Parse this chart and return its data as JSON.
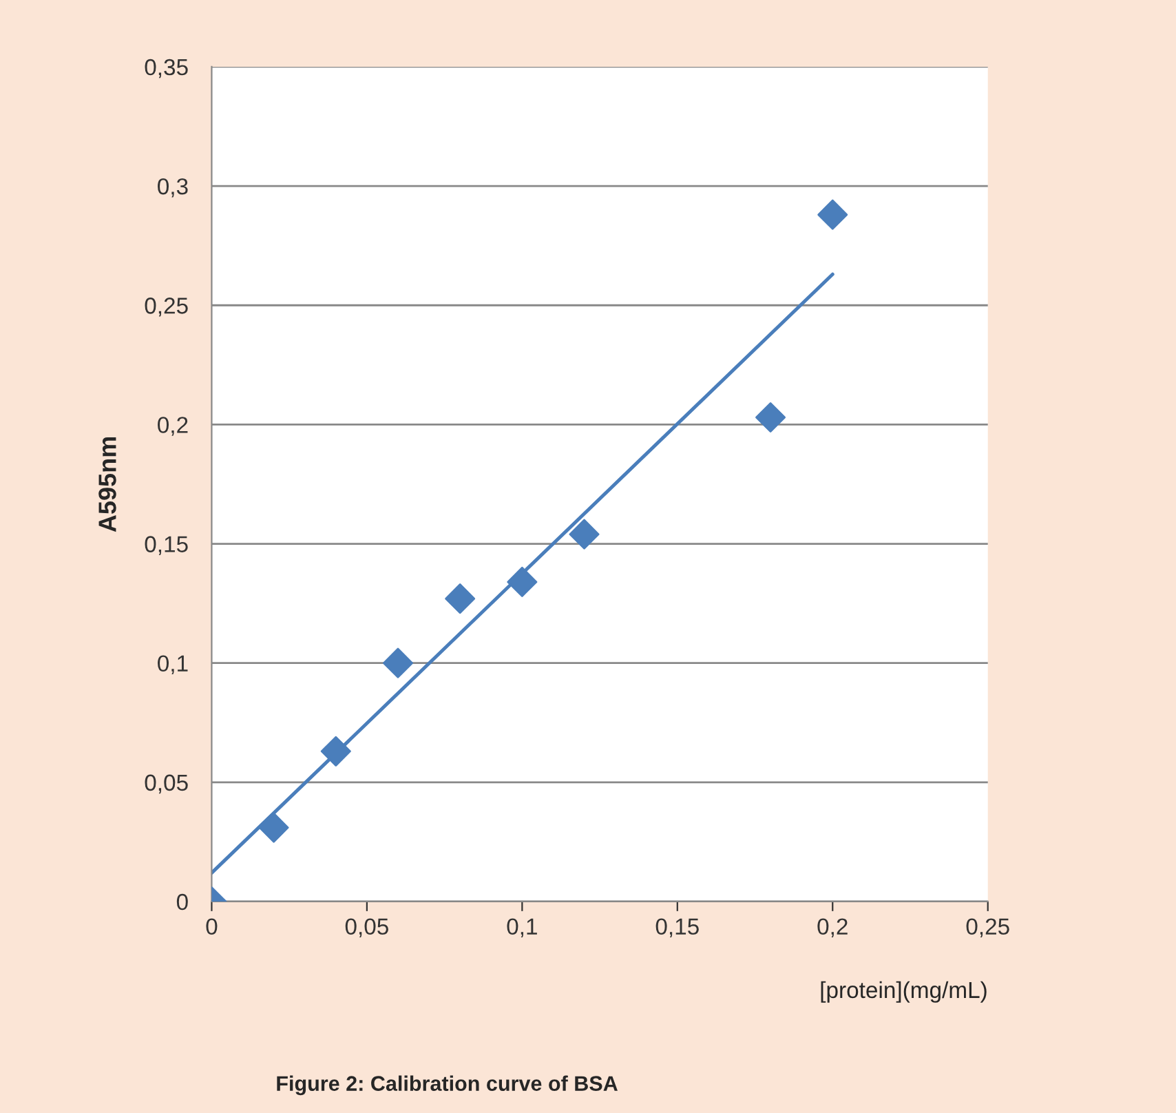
{
  "chart_data": {
    "type": "scatter",
    "xlabel": "[protein](mg/mL)",
    "ylabel": "A595nm",
    "annotations": [
      "Figure 2: Calibration curve of BSA"
    ],
    "series": [
      {
        "color": "#4a7ebb",
        "marker": "diamond",
        "x": [
          0,
          0.02,
          0.04,
          0.06,
          0.08,
          0.1,
          0.12,
          0.18,
          0.2
        ],
        "values": [
          0,
          0.031,
          0.063,
          0.1,
          0.127,
          0.134,
          0.154,
          0.203,
          0.288
        ]
      },
      {
        "type": "line",
        "color": "#4a7ebb",
        "line_style": "solid",
        "x": [
          0,
          0.2
        ],
        "values": [
          0.012,
          0.263
        ]
      }
    ],
    "xlim": [
      0,
      0.25
    ],
    "ylim": [
      0,
      0.35
    ],
    "xticks": [
      {
        "value": 0,
        "label": "0"
      },
      {
        "value": 0.05,
        "label": "0,05"
      },
      {
        "value": 0.1,
        "label": "0,1"
      },
      {
        "value": 0.15,
        "label": "0,15"
      },
      {
        "value": 0.2,
        "label": "0,2"
      },
      {
        "value": 0.25,
        "label": "0,25"
      }
    ],
    "yticks": [
      {
        "value": 0,
        "label": "0"
      },
      {
        "value": 0.05,
        "label": "0,05"
      },
      {
        "value": 0.1,
        "label": "0,1"
      },
      {
        "value": 0.15,
        "label": "0,15"
      },
      {
        "value": 0.2,
        "label": "0,2"
      },
      {
        "value": 0.25,
        "label": "0,25"
      },
      {
        "value": 0.3,
        "label": "0,3"
      },
      {
        "value": 0.35,
        "label": "0,35"
      }
    ],
    "grid": "y"
  }
}
